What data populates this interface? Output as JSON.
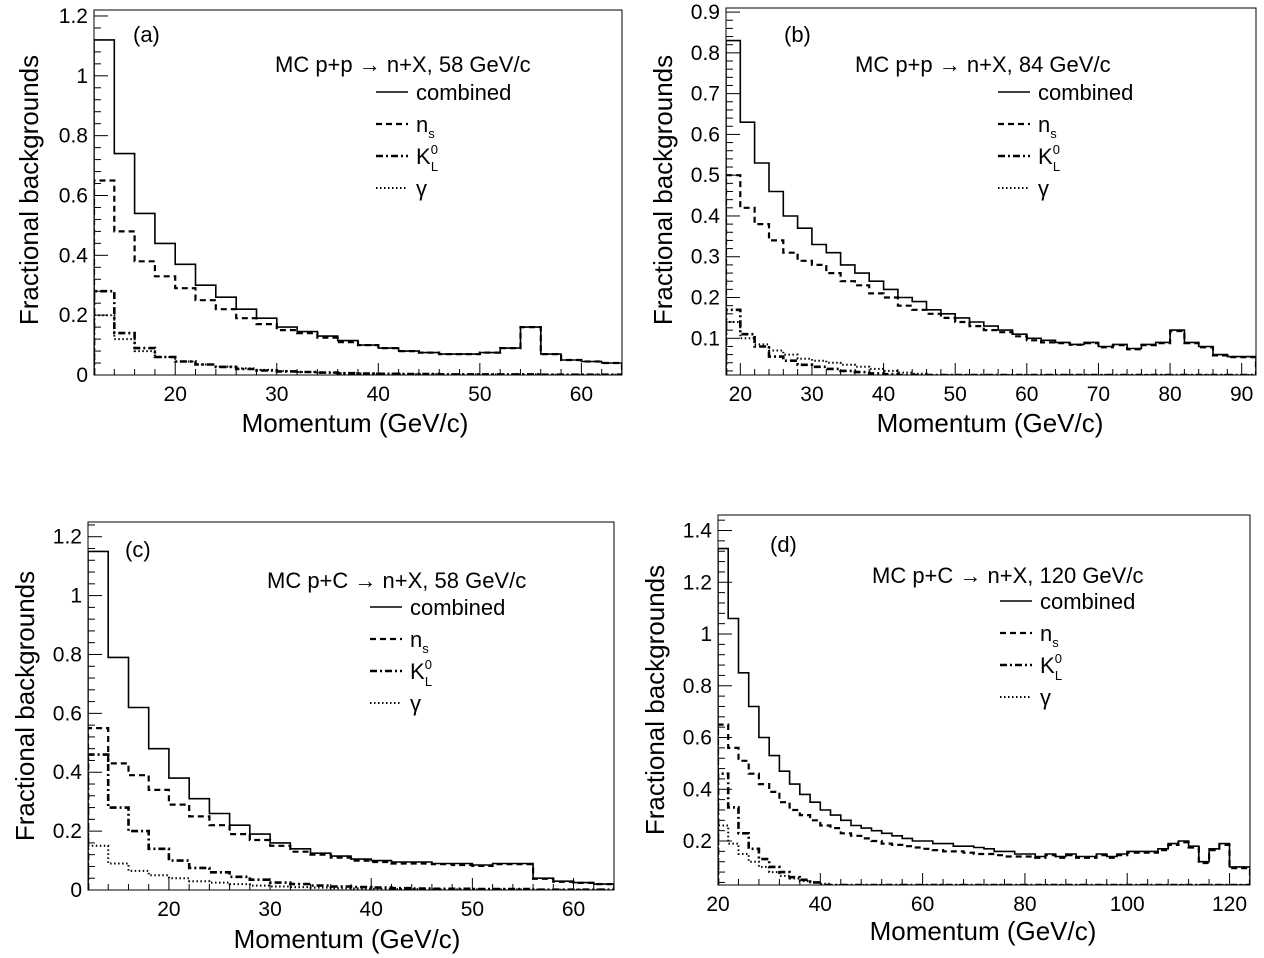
{
  "chart_data": [
    {
      "type": "histogram-step",
      "panel_label": "(a)",
      "title": "MC p+p → n+X, 58 GeV/c",
      "xlabel": "Momentum   (GeV/c)",
      "ylabel": "Fractional backgrounds",
      "xlim": [
        12,
        64
      ],
      "ylim": [
        0,
        1.22
      ],
      "xticks": [
        "20",
        "30",
        "40",
        "50",
        "60"
      ],
      "yticks": [
        "0",
        "0.2",
        "0.4",
        "0.6",
        "0.8",
        "1",
        "1.2"
      ],
      "legend": [
        "combined",
        "n_s",
        "K_L^0",
        "γ"
      ],
      "bin_edges": [
        12,
        14,
        16,
        18,
        20,
        22,
        24,
        26,
        28,
        30,
        32,
        34,
        36,
        38,
        40,
        42,
        44,
        46,
        48,
        50,
        52,
        54,
        56,
        58,
        60,
        62,
        64
      ],
      "series": [
        {
          "name": "combined",
          "style": "solid",
          "values": [
            1.12,
            0.74,
            0.54,
            0.44,
            0.37,
            0.3,
            0.26,
            0.22,
            0.19,
            0.16,
            0.145,
            0.13,
            0.115,
            0.1,
            0.09,
            0.08,
            0.075,
            0.07,
            0.07,
            0.075,
            0.09,
            0.16,
            0.07,
            0.05,
            0.045,
            0.04
          ]
        },
        {
          "name": "n_s",
          "style": "dashed",
          "values": [
            0.65,
            0.48,
            0.38,
            0.33,
            0.29,
            0.25,
            0.22,
            0.19,
            0.17,
            0.15,
            0.14,
            0.125,
            0.11,
            0.1,
            0.09,
            0.08,
            0.075,
            0.07,
            0.07,
            0.075,
            0.09,
            0.16,
            0.07,
            0.05,
            0.045,
            0.04
          ]
        },
        {
          "name": "K_L^0",
          "style": "dash-dot",
          "values": [
            0.28,
            0.14,
            0.09,
            0.06,
            0.045,
            0.035,
            0.027,
            0.02,
            0.015,
            0.012,
            0.01,
            0.008,
            0.006,
            0.005,
            0.004,
            0.003,
            0.003,
            0.002,
            0.002,
            0.002,
            0.002,
            0.002,
            0.001,
            0.001,
            0.001,
            0.001
          ]
        },
        {
          "name": "γ",
          "style": "dotted",
          "values": [
            0.2,
            0.12,
            0.08,
            0.06,
            0.045,
            0.035,
            0.028,
            0.022,
            0.017,
            0.013,
            0.01,
            0.008,
            0.006,
            0.005,
            0.004,
            0.003,
            0.003,
            0.002,
            0.002,
            0.002,
            0.002,
            0.002,
            0.001,
            0.001,
            0.001,
            0.001
          ]
        }
      ]
    },
    {
      "type": "histogram-step",
      "panel_label": "(b)",
      "title": "MC p+p → n+X, 84 GeV/c",
      "xlabel": "Momentum   (GeV/c)",
      "ylabel": "Fractional backgrounds",
      "xlim": [
        18,
        92
      ],
      "ylim": [
        0.01,
        0.91
      ],
      "xticks": [
        "20",
        "30",
        "40",
        "50",
        "60",
        "70",
        "80",
        "90"
      ],
      "yticks": [
        "0.1",
        "0.2",
        "0.3",
        "0.4",
        "0.5",
        "0.6",
        "0.7",
        "0.8",
        "0.9"
      ],
      "legend": [
        "combined",
        "n_s",
        "K_L^0",
        "γ"
      ],
      "bin_edges": [
        18,
        20,
        22,
        24,
        26,
        28,
        30,
        32,
        34,
        36,
        38,
        40,
        42,
        44,
        46,
        48,
        50,
        52,
        54,
        56,
        58,
        60,
        62,
        64,
        66,
        68,
        70,
        72,
        74,
        76,
        78,
        80,
        82,
        84,
        86,
        88,
        90,
        92
      ],
      "series": [
        {
          "name": "combined",
          "style": "solid",
          "values": [
            0.83,
            0.63,
            0.53,
            0.46,
            0.4,
            0.37,
            0.33,
            0.31,
            0.28,
            0.26,
            0.24,
            0.22,
            0.2,
            0.19,
            0.17,
            0.16,
            0.15,
            0.14,
            0.13,
            0.12,
            0.11,
            0.1,
            0.095,
            0.09,
            0.085,
            0.09,
            0.08,
            0.085,
            0.075,
            0.085,
            0.09,
            0.12,
            0.09,
            0.08,
            0.06,
            0.055,
            0.055
          ]
        },
        {
          "name": "n_s",
          "style": "dashed",
          "values": [
            0.5,
            0.42,
            0.38,
            0.34,
            0.31,
            0.29,
            0.28,
            0.26,
            0.24,
            0.23,
            0.21,
            0.2,
            0.18,
            0.17,
            0.16,
            0.15,
            0.14,
            0.13,
            0.12,
            0.115,
            0.105,
            0.095,
            0.09,
            0.088,
            0.084,
            0.088,
            0.078,
            0.083,
            0.073,
            0.083,
            0.088,
            0.118,
            0.088,
            0.078,
            0.058,
            0.054,
            0.054
          ]
        },
        {
          "name": "K_L^0",
          "style": "dash-dot",
          "values": [
            0.17,
            0.11,
            0.08,
            0.055,
            0.045,
            0.035,
            0.03,
            0.025,
            0.02,
            0.017,
            0.014,
            0.012,
            0.01,
            0.008,
            0.007,
            0.006,
            0.005,
            0.004,
            0.004,
            0.003,
            0.003,
            0.002,
            0.002,
            0.002,
            0.002,
            0.002,
            0.001,
            0.001,
            0.001,
            0.001,
            0.001,
            0.001,
            0.001,
            0.001,
            0.001,
            0.001,
            0.001
          ]
        },
        {
          "name": "γ",
          "style": "dotted",
          "values": [
            0.14,
            0.1,
            0.085,
            0.07,
            0.06,
            0.05,
            0.045,
            0.04,
            0.035,
            0.03,
            0.025,
            0.02,
            0.016,
            0.013,
            0.01,
            0.008,
            0.007,
            0.006,
            0.005,
            0.004,
            0.003,
            0.003,
            0.002,
            0.002,
            0.002,
            0.002,
            0.001,
            0.001,
            0.001,
            0.001,
            0.001,
            0.001,
            0.001,
            0.001,
            0.001,
            0.001,
            0.001
          ]
        }
      ]
    },
    {
      "type": "histogram-step",
      "panel_label": "(c)",
      "title": "MC p+C → n+X, 58 GeV/c",
      "xlabel": "Momentum   (GeV/c)",
      "ylabel": "Fractional backgrounds",
      "xlim": [
        12,
        64
      ],
      "ylim": [
        0,
        1.25
      ],
      "xticks": [
        "20",
        "30",
        "40",
        "50",
        "60"
      ],
      "yticks": [
        "0",
        "0.2",
        "0.4",
        "0.6",
        "0.8",
        "1",
        "1.2"
      ],
      "legend": [
        "combined",
        "n_s",
        "K_L^0",
        "γ"
      ],
      "bin_edges": [
        12,
        14,
        16,
        18,
        20,
        22,
        24,
        26,
        28,
        30,
        32,
        34,
        36,
        38,
        40,
        42,
        44,
        46,
        48,
        50,
        52,
        54,
        56,
        58,
        60,
        62,
        64
      ],
      "series": [
        {
          "name": "combined",
          "style": "solid",
          "values": [
            1.15,
            0.79,
            0.62,
            0.48,
            0.38,
            0.31,
            0.26,
            0.22,
            0.19,
            0.16,
            0.14,
            0.125,
            0.115,
            0.105,
            0.1,
            0.095,
            0.095,
            0.09,
            0.09,
            0.085,
            0.09,
            0.09,
            0.04,
            0.03,
            0.025,
            0.02
          ]
        },
        {
          "name": "n_s",
          "style": "dashed",
          "values": [
            0.55,
            0.43,
            0.39,
            0.34,
            0.29,
            0.25,
            0.22,
            0.19,
            0.17,
            0.15,
            0.13,
            0.12,
            0.11,
            0.1,
            0.095,
            0.09,
            0.09,
            0.088,
            0.085,
            0.082,
            0.088,
            0.088,
            0.038,
            0.028,
            0.024,
            0.02
          ]
        },
        {
          "name": "K_L^0",
          "style": "dash-dot",
          "values": [
            0.46,
            0.28,
            0.2,
            0.14,
            0.1,
            0.075,
            0.06,
            0.045,
            0.035,
            0.025,
            0.02,
            0.015,
            0.012,
            0.01,
            0.008,
            0.006,
            0.005,
            0.004,
            0.004,
            0.003,
            0.003,
            0.003,
            0.001,
            0.001,
            0.001,
            0.001
          ]
        },
        {
          "name": "γ",
          "style": "dotted",
          "values": [
            0.15,
            0.09,
            0.065,
            0.05,
            0.04,
            0.03,
            0.025,
            0.02,
            0.015,
            0.012,
            0.01,
            0.008,
            0.006,
            0.005,
            0.004,
            0.003,
            0.003,
            0.002,
            0.002,
            0.002,
            0.002,
            0.002,
            0.001,
            0.001,
            0.001,
            0.001
          ]
        }
      ]
    },
    {
      "type": "histogram-step",
      "panel_label": "(d)",
      "title": "MC p+C → n+X, 120 GeV/c",
      "xlabel": "Momentum   (GeV/c)",
      "ylabel": "Fractional backgrounds",
      "xlim": [
        20,
        124
      ],
      "ylim": [
        0.03,
        1.46
      ],
      "xticks": [
        "20",
        "40",
        "60",
        "80",
        "100",
        "120"
      ],
      "yticks": [
        "0.2",
        "0.4",
        "0.6",
        "0.8",
        "1",
        "1.2",
        "1.4"
      ],
      "legend": [
        "combined",
        "n_s",
        "K_L^0",
        "γ"
      ],
      "bin_edges": [
        20,
        22,
        24,
        26,
        28,
        30,
        32,
        34,
        36,
        38,
        40,
        42,
        44,
        46,
        48,
        50,
        52,
        54,
        56,
        58,
        60,
        62,
        64,
        66,
        68,
        70,
        72,
        74,
        76,
        78,
        80,
        82,
        84,
        86,
        88,
        90,
        92,
        94,
        96,
        98,
        100,
        102,
        104,
        106,
        108,
        110,
        112,
        114,
        116,
        118,
        120,
        122,
        124
      ],
      "series": [
        {
          "name": "combined",
          "style": "solid",
          "values": [
            1.33,
            1.06,
            0.85,
            0.72,
            0.6,
            0.53,
            0.47,
            0.42,
            0.38,
            0.35,
            0.32,
            0.3,
            0.28,
            0.26,
            0.25,
            0.24,
            0.23,
            0.22,
            0.21,
            0.2,
            0.2,
            0.19,
            0.19,
            0.18,
            0.18,
            0.175,
            0.17,
            0.16,
            0.16,
            0.15,
            0.15,
            0.14,
            0.15,
            0.14,
            0.15,
            0.14,
            0.14,
            0.15,
            0.14,
            0.15,
            0.16,
            0.16,
            0.16,
            0.17,
            0.19,
            0.2,
            0.18,
            0.12,
            0.17,
            0.19,
            0.1,
            0.1
          ]
        },
        {
          "name": "n_s",
          "style": "dashed",
          "values": [
            0.65,
            0.56,
            0.51,
            0.46,
            0.42,
            0.39,
            0.35,
            0.32,
            0.3,
            0.28,
            0.26,
            0.25,
            0.23,
            0.22,
            0.21,
            0.2,
            0.19,
            0.185,
            0.18,
            0.175,
            0.17,
            0.165,
            0.16,
            0.16,
            0.155,
            0.15,
            0.15,
            0.145,
            0.14,
            0.14,
            0.14,
            0.135,
            0.145,
            0.135,
            0.145,
            0.135,
            0.135,
            0.145,
            0.135,
            0.145,
            0.155,
            0.155,
            0.155,
            0.165,
            0.185,
            0.195,
            0.175,
            0.115,
            0.165,
            0.185,
            0.095,
            0.095
          ]
        },
        {
          "name": "K_L^0",
          "style": "dash-dot",
          "values": [
            0.46,
            0.33,
            0.23,
            0.17,
            0.13,
            0.1,
            0.08,
            0.06,
            0.05,
            0.04,
            0.03,
            0.025,
            0.02,
            0.018,
            0.015,
            0.012,
            0.01,
            0.008,
            0.007,
            0.006,
            0.005,
            0.004,
            0.004,
            0.003,
            0.003,
            0.002,
            0.002,
            0.002,
            0.002,
            0.002,
            0.001,
            0.001,
            0.001,
            0.001,
            0.001,
            0.001,
            0.001,
            0.001,
            0.001,
            0.001,
            0.001,
            0.001,
            0.001,
            0.001,
            0.001,
            0.001,
            0.001,
            0.001,
            0.001,
            0.001,
            0.001,
            0.001
          ]
        },
        {
          "name": "γ",
          "style": "dotted",
          "values": [
            0.26,
            0.19,
            0.15,
            0.12,
            0.1,
            0.08,
            0.065,
            0.055,
            0.045,
            0.04,
            0.035,
            0.03,
            0.025,
            0.02,
            0.017,
            0.015,
            0.012,
            0.01,
            0.009,
            0.008,
            0.007,
            0.006,
            0.005,
            0.004,
            0.004,
            0.003,
            0.003,
            0.002,
            0.002,
            0.002,
            0.001,
            0.001,
            0.001,
            0.001,
            0.001,
            0.001,
            0.001,
            0.001,
            0.001,
            0.001,
            0.001,
            0.001,
            0.001,
            0.001,
            0.001,
            0.001,
            0.001,
            0.001,
            0.001,
            0.001,
            0.001,
            0.001
          ]
        }
      ]
    }
  ]
}
